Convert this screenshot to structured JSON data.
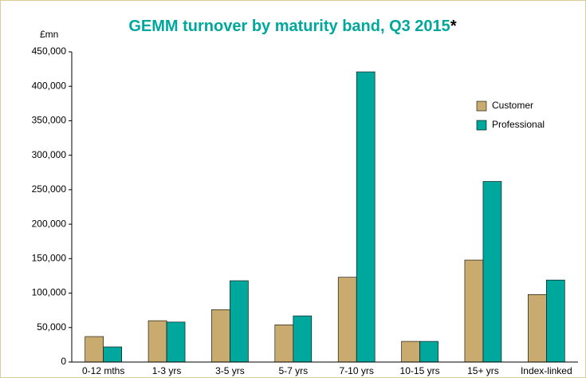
{
  "chart_data": {
    "type": "bar",
    "title": "GEMM turnover by maturity band, Q3 2015",
    "title_note": "*",
    "y_label": "£mn",
    "categories": [
      "0-12 mths",
      "1-3 yrs",
      "3-5 yrs",
      "5-7 yrs",
      "7-10 yrs",
      "10-15 yrs",
      "15+ yrs",
      "Index-linked"
    ],
    "series": [
      {
        "name": "Customer",
        "color": "#c9ab6f",
        "values": [
          37000,
          60000,
          76000,
          54000,
          123000,
          30000,
          148000,
          98000
        ]
      },
      {
        "name": "Professional",
        "color": "#00a79d",
        "values": [
          22000,
          58000,
          118000,
          67000,
          421000,
          30000,
          262000,
          119000
        ]
      }
    ],
    "ylim": [
      0,
      450000
    ],
    "yticks": [
      0,
      {
        "value": 50000,
        "label": "50,000"
      },
      {
        "value": 100000,
        "label": "100,000"
      },
      {
        "value": 150000,
        "label": "150,000"
      },
      {
        "value": 200000,
        "label": "200,000"
      },
      {
        "value": 250000,
        "label": "250,000"
      },
      {
        "value": 300000,
        "label": "300,000"
      },
      {
        "value": 350000,
        "label": "350,000"
      },
      {
        "value": 400000,
        "label": "400,000"
      },
      {
        "value": 450000,
        "label": "450,000"
      }
    ],
    "legend": "upper right",
    "title_color": "#00a79d"
  }
}
